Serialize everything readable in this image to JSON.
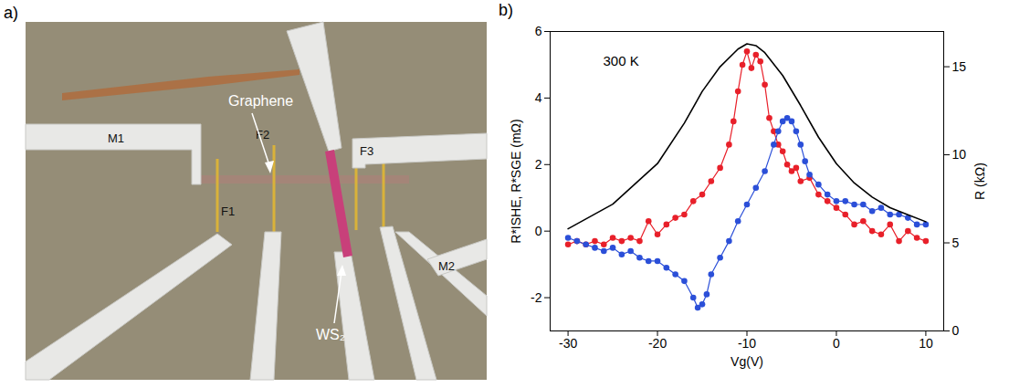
{
  "panel_a": {
    "letter": "a)",
    "labels": {
      "M1": "M1",
      "F1": "F1",
      "F2": "F2",
      "F3": "F3",
      "M2": "M2",
      "graphene": "Graphene",
      "ws2": "WS₂"
    }
  },
  "chart_data": {
    "type": "line",
    "panel_label": "b)",
    "annotation": "300 K",
    "x_label": "Vg(V)",
    "y_label": "R*ISHE, R*SGE (mΩ)",
    "y2_label": "R (kΩ)",
    "xlim": [
      -32,
      12
    ],
    "xticks": [
      -30,
      -20,
      -10,
      0,
      10
    ],
    "ylim": [
      -3,
      6
    ],
    "yticks": [
      -2,
      0,
      2,
      4,
      6
    ],
    "y2lim": [
      0,
      17
    ],
    "y2ticks": [
      0,
      5,
      10,
      15
    ],
    "series": [
      {
        "name": "R*ISHE",
        "color": "#e8202a",
        "type": "line",
        "marker": "circle",
        "x": [
          -30,
          -29,
          -28,
          -27,
          -26,
          -25,
          -24,
          -23,
          -22,
          -21,
          -20,
          -19,
          -18,
          -17,
          -16,
          -15,
          -14,
          -13,
          -12,
          -11.5,
          -11,
          -10.5,
          -10,
          -9.5,
          -9,
          -8.5,
          -8,
          -7.5,
          -7,
          -6.5,
          -6,
          -5.5,
          -5,
          -4.5,
          -4,
          -3,
          -2,
          -1,
          0,
          1,
          2,
          3,
          4,
          5,
          6,
          7,
          8,
          9,
          10
        ],
        "values": [
          -0.4,
          -0.3,
          -0.4,
          -0.3,
          -0.4,
          -0.2,
          -0.3,
          -0.2,
          -0.3,
          0.3,
          -0.1,
          0.2,
          0.4,
          0.5,
          0.9,
          1.1,
          1.5,
          1.9,
          2.6,
          3.3,
          4.2,
          5.0,
          5.4,
          4.9,
          5.3,
          5.1,
          4.4,
          3.4,
          3.0,
          2.6,
          2.4,
          2.0,
          1.8,
          1.9,
          1.5,
          1.6,
          1.1,
          0.9,
          0.7,
          0.5,
          0.2,
          0.3,
          0.0,
          -0.1,
          0.2,
          -0.3,
          0.0,
          -0.2,
          -0.3
        ]
      },
      {
        "name": "R*SGE",
        "color": "#2b4fd8",
        "type": "line",
        "marker": "circle",
        "x": [
          -30,
          -29,
          -28,
          -27,
          -26,
          -25,
          -24,
          -23,
          -22,
          -21,
          -20,
          -19,
          -18,
          -17,
          -16,
          -15.5,
          -15,
          -14.5,
          -14,
          -13,
          -12,
          -11,
          -10,
          -9,
          -8,
          -7,
          -6.5,
          -6,
          -5.5,
          -5,
          -4.5,
          -4,
          -3.5,
          -3,
          -2,
          -1,
          0,
          1,
          2,
          3,
          4,
          5,
          6,
          7,
          8,
          9,
          10
        ],
        "values": [
          -0.2,
          -0.3,
          -0.4,
          -0.5,
          -0.6,
          -0.5,
          -0.7,
          -0.6,
          -0.8,
          -0.9,
          -0.9,
          -1.1,
          -1.3,
          -1.5,
          -2.0,
          -2.3,
          -2.2,
          -1.9,
          -1.3,
          -0.8,
          -0.3,
          0.3,
          0.8,
          1.3,
          1.8,
          2.6,
          3.0,
          3.3,
          3.4,
          3.3,
          3.0,
          2.6,
          2.1,
          1.7,
          1.4,
          1.1,
          0.9,
          0.9,
          0.8,
          0.8,
          0.6,
          0.7,
          0.5,
          0.5,
          0.4,
          0.2,
          0.2
        ]
      },
      {
        "name": "R",
        "color": "#000000",
        "type": "line",
        "marker": "none",
        "axis": "y2",
        "x": [
          -30,
          -25,
          -20,
          -17,
          -15,
          -13,
          -11,
          -10,
          -9,
          -8,
          -6,
          -4,
          -2,
          0,
          2,
          4,
          6,
          8,
          10
        ],
        "values": [
          5.8,
          7.2,
          9.5,
          11.8,
          13.6,
          15.0,
          16.0,
          16.3,
          16.2,
          15.8,
          14.5,
          12.8,
          11.0,
          9.5,
          8.4,
          7.6,
          7.0,
          6.6,
          6.2
        ]
      }
    ]
  }
}
